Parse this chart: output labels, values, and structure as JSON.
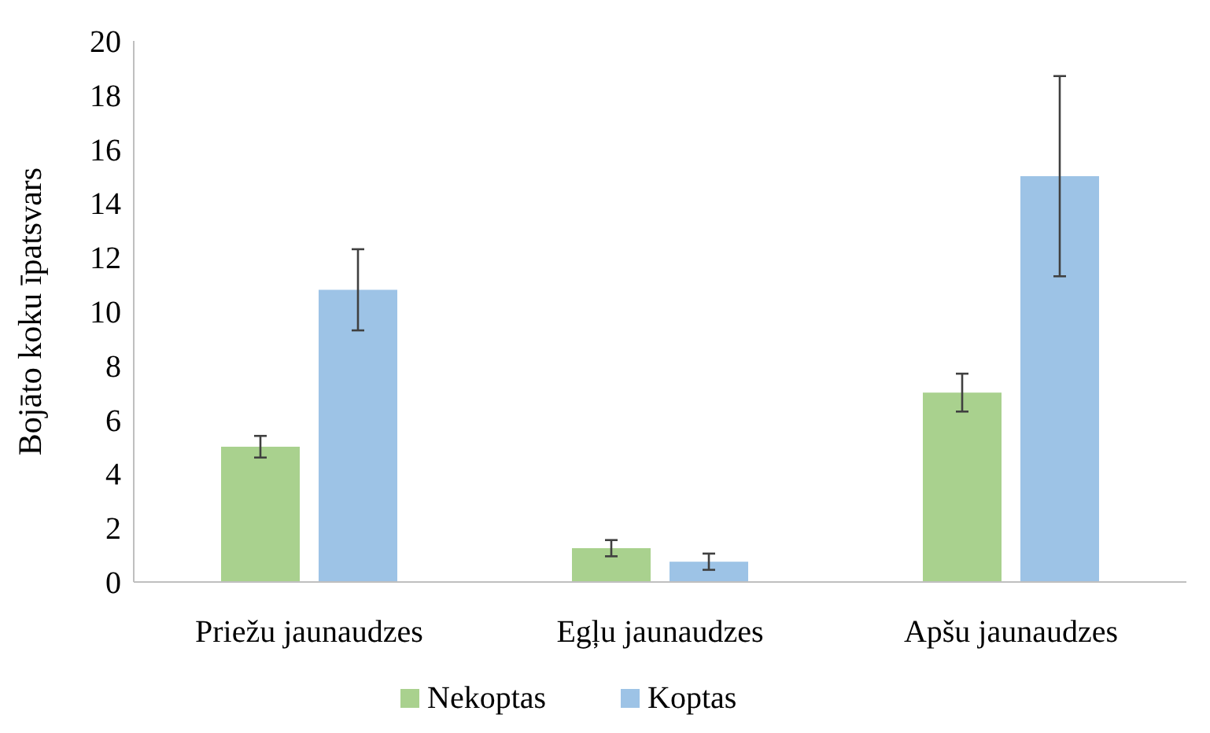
{
  "chart_data": {
    "type": "bar",
    "ylabel": "Bojāto koku īpatsvars",
    "categories": [
      "Priežu jaunaudzes",
      "Egļu jaunaudzes",
      "Apšu jaunaudzes"
    ],
    "series": [
      {
        "name": "Nekoptas",
        "color": "#a9d18e",
        "values": [
          5.0,
          1.25,
          7.0
        ],
        "errors": [
          0.4,
          0.3,
          0.7
        ]
      },
      {
        "name": "Koptas",
        "color": "#9dc3e6",
        "values": [
          10.8,
          0.75,
          15.0
        ],
        "errors": [
          1.5,
          0.3,
          3.7
        ]
      }
    ],
    "ylim": [
      0,
      20
    ],
    "yticks": [
      0,
      2,
      4,
      6,
      8,
      10,
      12,
      14,
      16,
      18,
      20
    ],
    "grid": false,
    "legend": "bottom"
  }
}
